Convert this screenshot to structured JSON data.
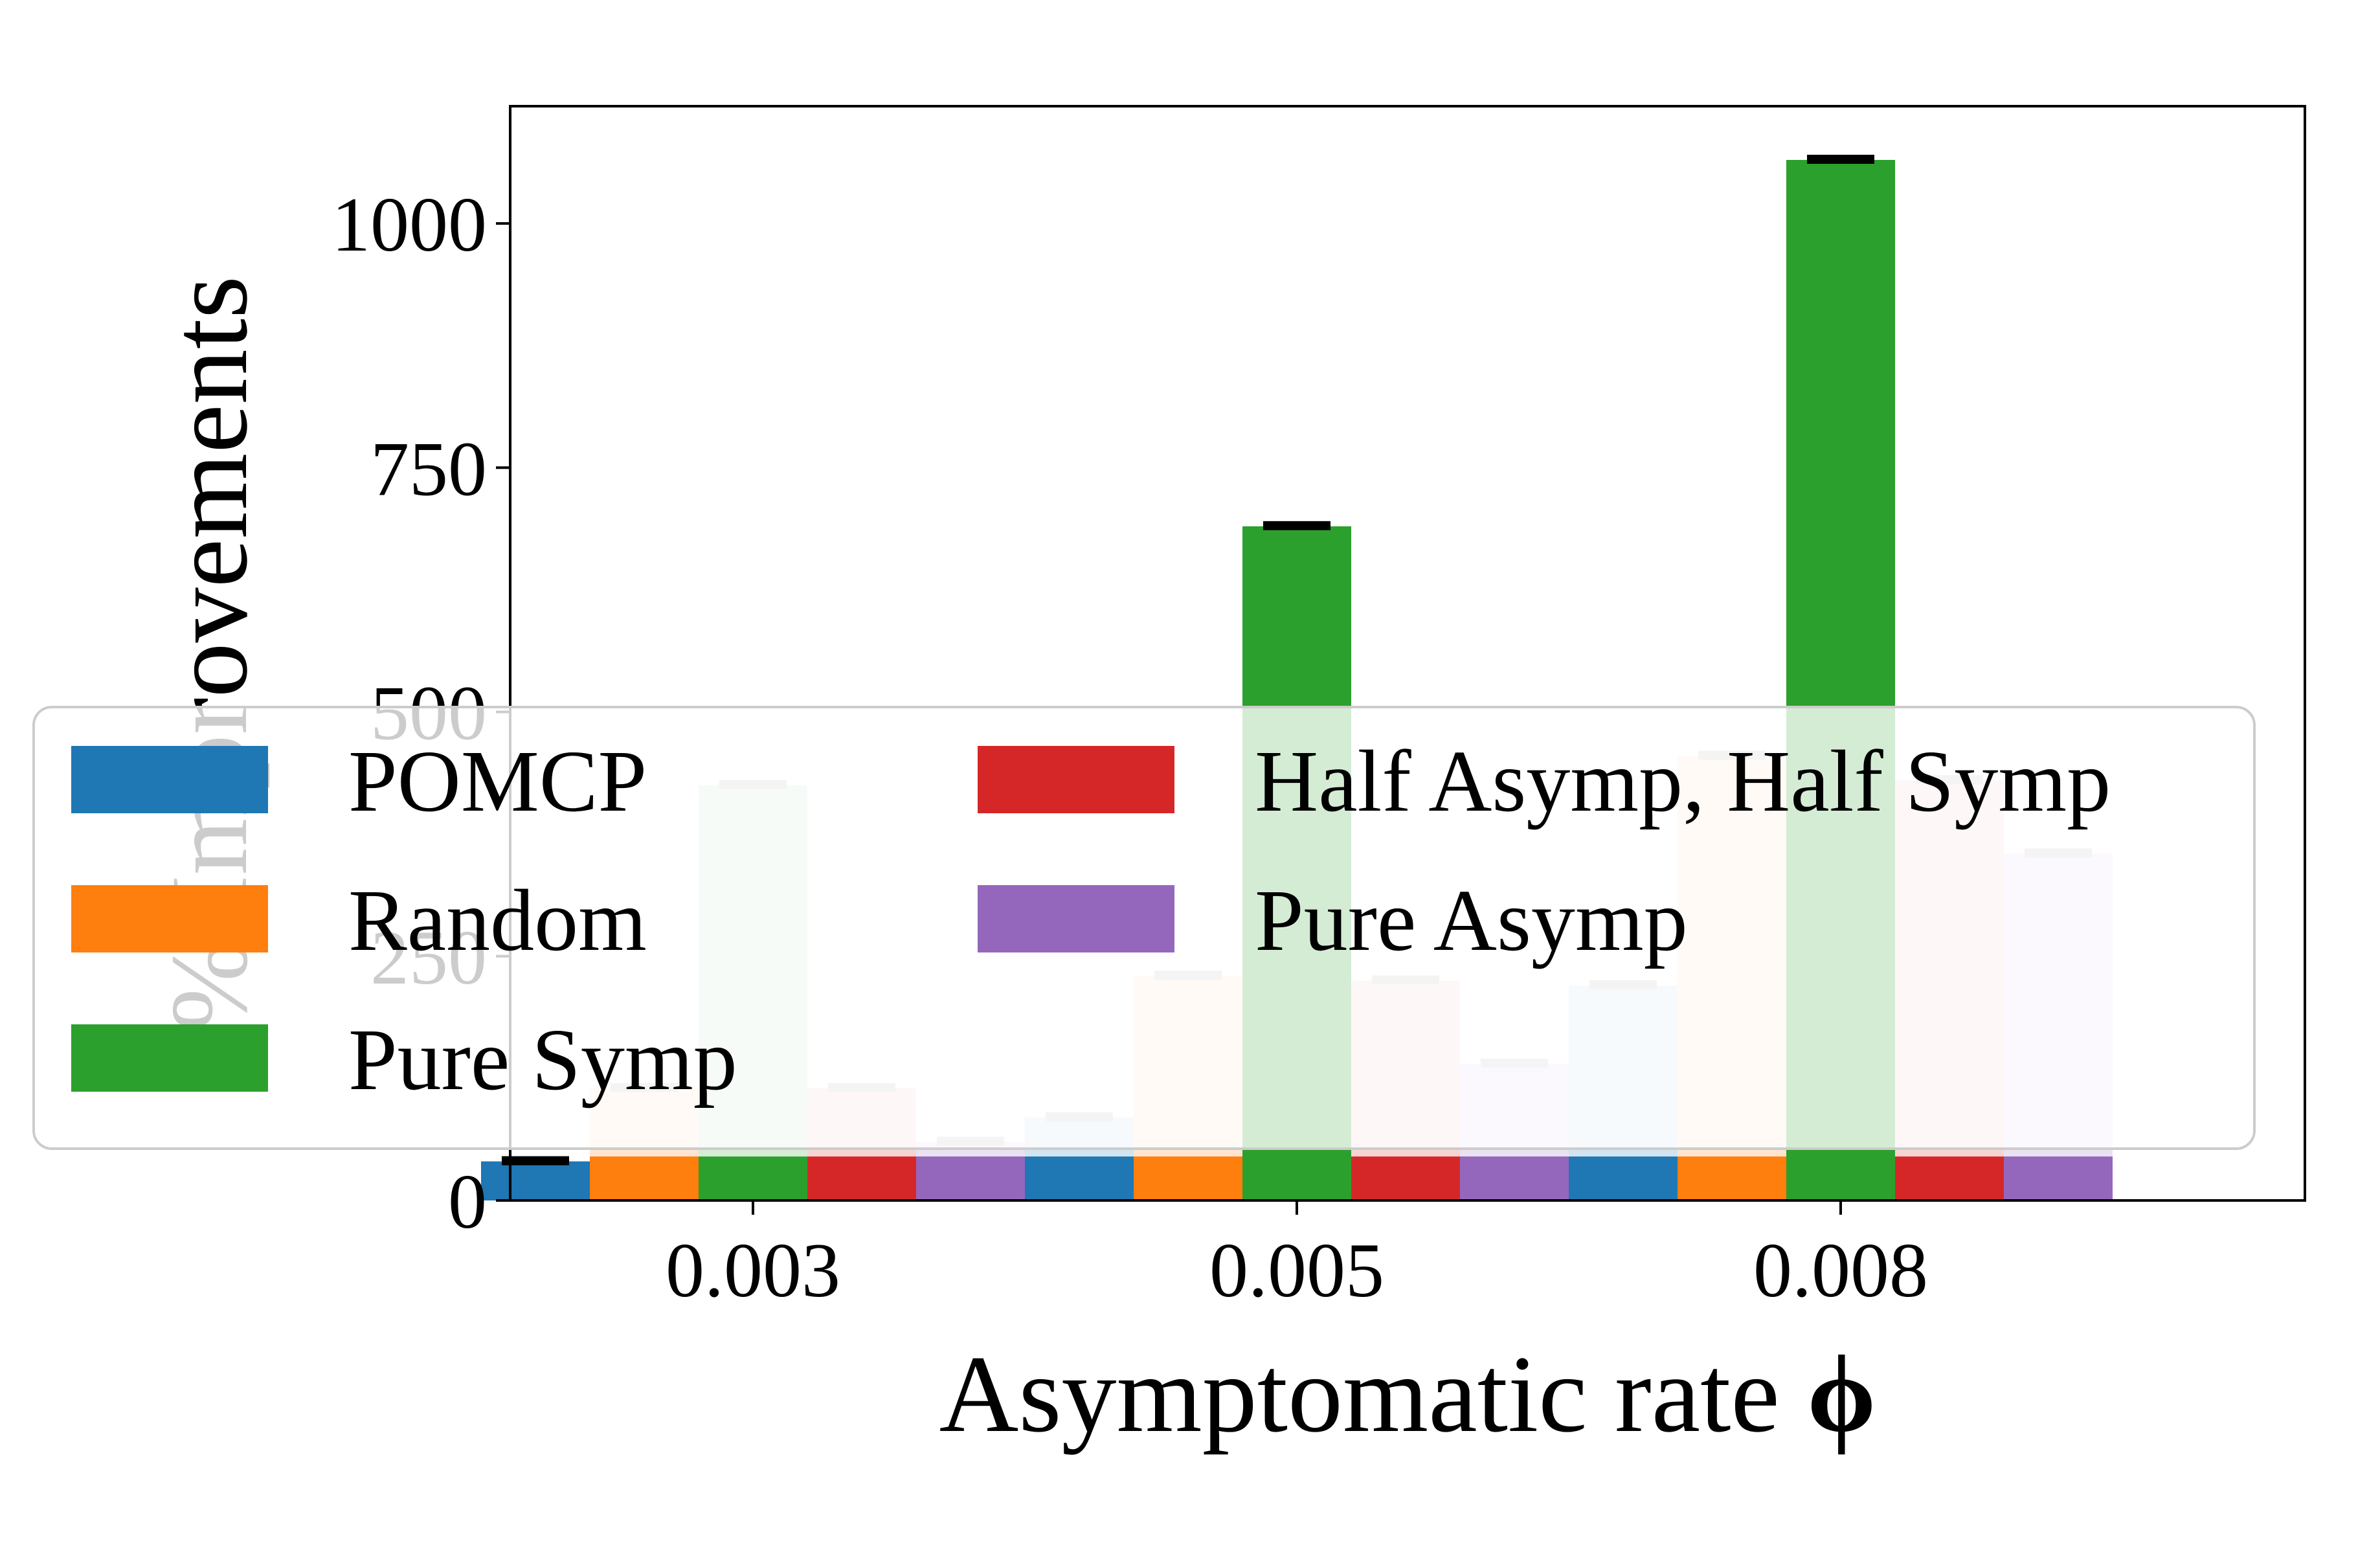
{
  "chart_data": {
    "type": "bar",
    "xlabel": "Asymptomatic rate",
    "xlabel_symbol": "ϕ",
    "ylabel": "% Improvements",
    "categories": [
      "0.003",
      "0.005",
      "0.008"
    ],
    "ylim": [
      0,
      1120
    ],
    "yticks": [
      "0",
      "250",
      "500",
      "750",
      "1000"
    ],
    "grid": false,
    "legend_placement": "center-left",
    "note": "Each bar is drawn with a solid base segment and a translucent full-height bar behind it.",
    "series": [
      {
        "name": "POMCP",
        "color": "#1f77b4",
        "values": [
          40,
          85,
          220
        ]
      },
      {
        "name": "Random",
        "color": "#ff7f0e",
        "values": [
          115,
          230,
          455
        ]
      },
      {
        "name": "Pure Symp",
        "color": "#2ca02c",
        "values": [
          425,
          690,
          1065
        ]
      },
      {
        "name": "Half Asymp, Half Symp",
        "color": "#d62728",
        "values": [
          115,
          225,
          430
        ]
      },
      {
        "name": "Pure Asymp",
        "color": "#9467bd",
        "values": [
          60,
          140,
          355
        ]
      }
    ],
    "solid_base": [
      45,
      45,
      45
    ],
    "legend": [
      "POMCP",
      "Random",
      "Pure Symp",
      "Half Asymp, Half Symp",
      "Pure Asymp"
    ]
  }
}
